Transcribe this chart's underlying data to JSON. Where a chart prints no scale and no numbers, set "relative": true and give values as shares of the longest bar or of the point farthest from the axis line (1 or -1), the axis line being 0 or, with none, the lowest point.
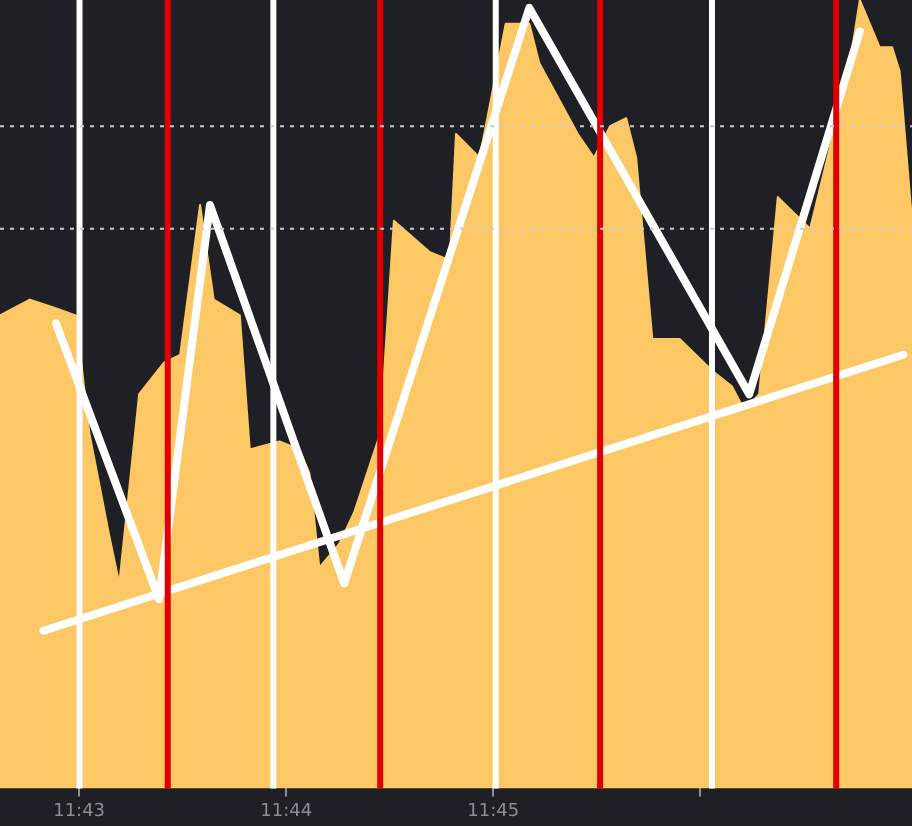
{
  "chart_data": {
    "type": "area",
    "relative": true,
    "legend": false,
    "grid": false,
    "tick_labels": "x",
    "marker": "none",
    "xlim": [
      11.7103,
      11.7837
    ],
    "xticks": [
      {
        "value": 11.716667,
        "label": "11:43"
      },
      {
        "value": 11.733333,
        "label": "11:44"
      },
      {
        "value": 11.75,
        "label": "11:45"
      },
      {
        "value": 11.766667,
        "label": null
      }
    ],
    "series": [
      {
        "color": "#fcc865",
        "x": [
          11.7103,
          11.7127,
          11.7146,
          11.7164,
          11.7175,
          11.7191,
          11.7199,
          11.7215,
          11.7235,
          11.7248,
          11.7264,
          11.7275,
          11.7296,
          11.7304,
          11.7328,
          11.7344,
          11.7352,
          11.736,
          11.7376,
          11.7388,
          11.7409,
          11.742,
          11.7449,
          11.7465,
          11.747,
          11.7489,
          11.751,
          11.7529,
          11.7537,
          11.7568,
          11.7581,
          11.7594,
          11.7607,
          11.7615,
          11.7628,
          11.765,
          11.7676,
          11.7692,
          11.7702,
          11.7714,
          11.7729,
          11.7755,
          11.7772,
          11.7789,
          11.7795,
          11.7811,
          11.7821,
          11.7827,
          11.7837
        ],
        "values": [
          0.6,
          0.62,
          0.61,
          0.6,
          0.45,
          0.32,
          0.26,
          0.5,
          0.54,
          0.55,
          0.74,
          0.62,
          0.6,
          0.43,
          0.44,
          0.43,
          0.4,
          0.28,
          0.31,
          0.35,
          0.45,
          0.72,
          0.68,
          0.67,
          0.83,
          0.8,
          0.97,
          0.97,
          0.92,
          0.83,
          0.8,
          0.84,
          0.85,
          0.8,
          0.57,
          0.57,
          0.53,
          0.51,
          0.48,
          0.5,
          0.75,
          0.71,
          0.82,
          0.94,
          1,
          0.94,
          0.94,
          0.91,
          0.72
        ]
      },
      {
        "type": "line",
        "color": "#ffffff",
        "x": [
          11.7148,
          11.7231,
          11.7272,
          11.738,
          11.7529,
          11.7706,
          11.7795
        ],
        "values": [
          0.59,
          0.24,
          0.74,
          0.26,
          0.99,
          0.5,
          0.96
        ]
      },
      {
        "type": "line",
        "color": "#ffffff",
        "x": [
          11.7138,
          11.783
        ],
        "values": [
          0.2,
          0.55
        ]
      }
    ],
    "ref_lines": [
      {
        "axis": "x",
        "value": 11.7167,
        "color": "#ffffff"
      },
      {
        "axis": "x",
        "value": 11.7323,
        "color": "#ffffff"
      },
      {
        "axis": "x",
        "value": 11.7502,
        "color": "#ffffff"
      },
      {
        "axis": "x",
        "value": 11.7676,
        "color": "#ffffff"
      },
      {
        "axis": "x",
        "value": 11.7238,
        "color": "#e00000"
      },
      {
        "axis": "x",
        "value": 11.7409,
        "color": "#e00000"
      },
      {
        "axis": "x",
        "value": 11.7586,
        "color": "#e00000"
      },
      {
        "axis": "x",
        "value": 11.7776,
        "color": "#e00000"
      },
      {
        "axis": "y",
        "value": 0.84,
        "color": "#cccccc",
        "line_style": "dotted"
      },
      {
        "axis": "y",
        "value": 0.71,
        "color": "#cccccc",
        "line_style": "dotted"
      }
    ]
  }
}
